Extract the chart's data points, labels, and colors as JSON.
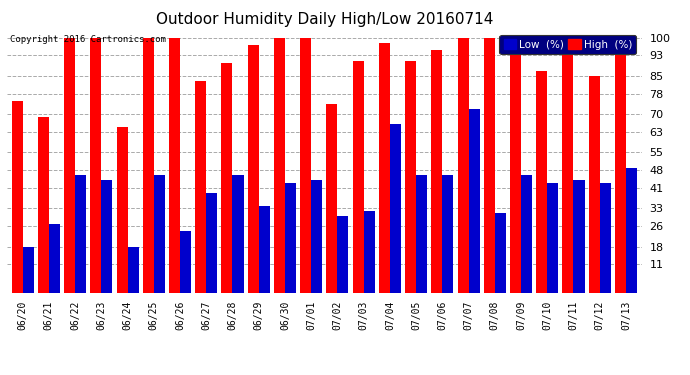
{
  "title": "Outdoor Humidity Daily High/Low 20160714",
  "copyright": "Copyright 2016 Cartronics.com",
  "dates": [
    "06/20",
    "06/21",
    "06/22",
    "06/23",
    "06/24",
    "06/25",
    "06/26",
    "06/27",
    "06/28",
    "06/29",
    "06/30",
    "07/01",
    "07/02",
    "07/03",
    "07/04",
    "07/05",
    "07/06",
    "07/07",
    "07/08",
    "07/09",
    "07/10",
    "07/11",
    "07/12",
    "07/13"
  ],
  "high": [
    75,
    69,
    100,
    100,
    65,
    100,
    100,
    83,
    90,
    97,
    100,
    100,
    74,
    91,
    98,
    91,
    95,
    100,
    100,
    100,
    87,
    93,
    85,
    99
  ],
  "low": [
    18,
    27,
    46,
    44,
    18,
    46,
    24,
    39,
    46,
    34,
    43,
    44,
    30,
    32,
    66,
    46,
    46,
    72,
    31,
    46,
    43,
    44,
    43,
    49
  ],
  "high_color": "#FF0000",
  "low_color": "#0000CC",
  "bg_color": "#FFFFFF",
  "grid_color": "#AAAAAA",
  "yticks": [
    11,
    18,
    26,
    33,
    41,
    48,
    55,
    63,
    70,
    78,
    85,
    93,
    100
  ],
  "ylim": [
    0,
    103
  ],
  "bar_width": 0.42,
  "legend_low_label": "Low  (%)",
  "legend_high_label": "High  (%)"
}
